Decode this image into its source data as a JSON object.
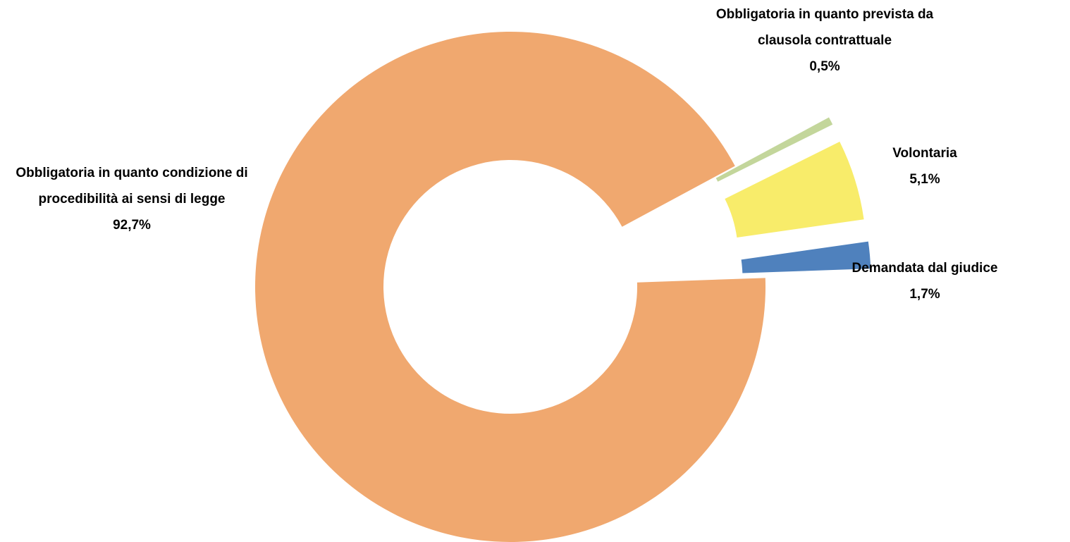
{
  "chart_data": {
    "type": "donut",
    "categories": [
      "Obbligatoria in quanto condizione di procedibilità ai sensi di legge",
      "Obbligatoria in quanto prevista da clausola contrattuale",
      "Volontaria",
      "Demandata dal giudice"
    ],
    "values": [
      92.7,
      0.5,
      5.1,
      1.7
    ],
    "value_labels": [
      "92,7%",
      "0,5%",
      "5,1%",
      "1,7%"
    ],
    "colors": [
      "#F0A86F",
      "#C3D69B",
      "#F8EC6A",
      "#4F81BD"
    ]
  }
}
